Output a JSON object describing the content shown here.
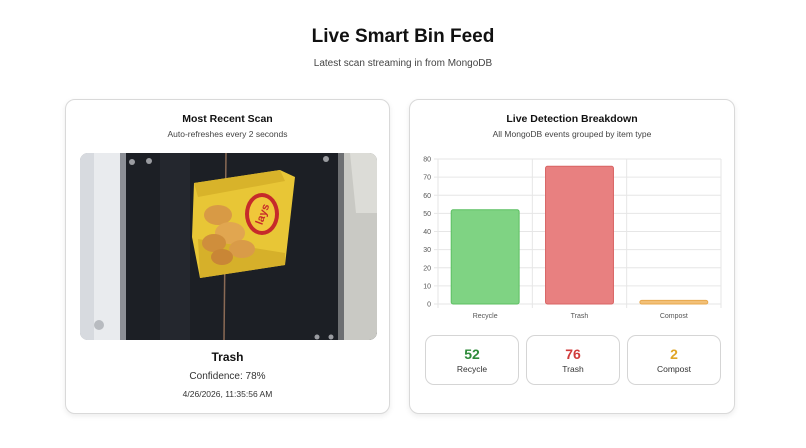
{
  "header": {
    "title": "Live Smart Bin Feed",
    "subtitle": "Latest scan streaming in from MongoDB"
  },
  "recent_scan": {
    "title": "Most Recent Scan",
    "subtitle": "Auto-refreshes every 2 seconds",
    "label": "Trash",
    "confidence_text": "Confidence: 78%",
    "timestamp": "4/26/2026, 11:35:56 AM",
    "image_brand_text": "lays"
  },
  "breakdown": {
    "title": "Live Detection Breakdown",
    "subtitle": "All MongoDB events grouped by item type",
    "stats": [
      {
        "value": "52",
        "label": "Recycle",
        "color": "#2e8b3a"
      },
      {
        "value": "76",
        "label": "Trash",
        "color": "#d03b3b"
      },
      {
        "value": "2",
        "label": "Compost",
        "color": "#e0a526"
      }
    ]
  },
  "chart_data": {
    "type": "bar",
    "categories": [
      "Recycle",
      "Trash",
      "Compost"
    ],
    "values": [
      52,
      76,
      2
    ],
    "colors": [
      "#7fd383",
      "#e88080",
      "#f2c078"
    ],
    "border_colors": [
      "#5cbf62",
      "#d86363",
      "#e8a84d"
    ],
    "ylim": [
      0,
      80
    ],
    "yticks": [
      0,
      10,
      20,
      30,
      40,
      50,
      60,
      70,
      80
    ],
    "grid": true,
    "title": "",
    "xlabel": "",
    "ylabel": ""
  }
}
